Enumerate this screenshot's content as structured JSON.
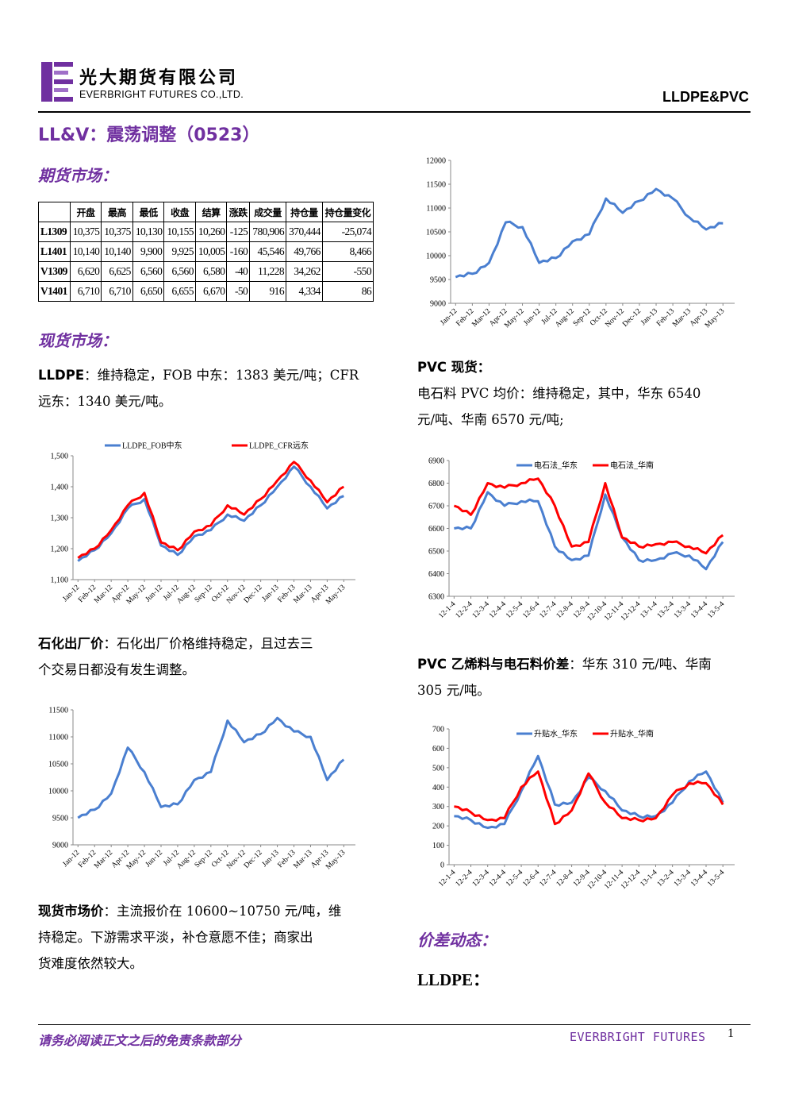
{
  "header": {
    "company_cn": "光大期货有限公司",
    "company_en": "EVERBRIGHT FUTURES CO.,LTD.",
    "doc_tag": "LLDPE&PVC",
    "brand_color": "#7030a0"
  },
  "title": "LL&V：震荡调整（0523）",
  "futures": {
    "heading": "期货市场：",
    "columns": [
      "",
      "开盘",
      "最高",
      "最低",
      "收盘",
      "结算",
      "涨跌",
      "成交量",
      "持仓量",
      "持仓量变化"
    ],
    "rows": [
      [
        "L1309",
        "10,375",
        "10,375",
        "10,130",
        "10,155",
        "10,260",
        "-125",
        "780,906",
        "370,444",
        "-25,074"
      ],
      [
        "L1401",
        "10,140",
        "10,140",
        "9,900",
        "9,925",
        "10,005",
        "-160",
        "45,546",
        "49,766",
        "8,466"
      ],
      [
        "V1309",
        "6,620",
        "6,625",
        "6,560",
        "6,560",
        "6,580",
        "-40",
        "11,228",
        "34,262",
        "-550"
      ],
      [
        "V1401",
        "6,710",
        "6,710",
        "6,650",
        "6,655",
        "6,670",
        "-50",
        "916",
        "4,334",
        "86"
      ]
    ]
  },
  "spot": {
    "heading": "现货市场：",
    "lldpe_label": "LLDPE",
    "lldpe_text_1": "：维持稳定，FOB 中东：1383 美元/吨；CFR",
    "lldpe_text_2": "远东：1340 美元/吨。",
    "petro_label": "石化出厂价",
    "petro_text_1": "：石化出厂价格维持稳定，且过去三",
    "petro_text_2": "个交易日都没有发生调整。",
    "market_label": "现货市场价",
    "market_text_1": "：主流报价在 10600~10750 元/吨，维",
    "market_text_2": "持稳定。下游需求平淡，补仓意愿不佳；商家出",
    "market_text_3": "货难度依然较大。",
    "pvc_label": "PVC 现货：",
    "pvc_text_1": "电石料 PVC 均价：维持稳定，其中，华东 6540",
    "pvc_text_2": "元/吨、华南 6570 元/吨;",
    "spread_label": "PVC 乙烯料与电石料价差",
    "spread_text_1": "：华东 310 元/吨、华南",
    "spread_text_2": "305 元/吨。",
    "spread_heading": "价差动态：",
    "lldpe_sub": "LLDPE："
  },
  "footer": {
    "disclaimer": "请务必阅读正文之后的免责条款部分",
    "brand": "EVERBRIGHT FUTURES",
    "page": "1"
  },
  "chart_data": [
    {
      "type": "line",
      "x_labels": [
        "Jan-12",
        "Feb-12",
        "Mar-12",
        "Apr-12",
        "May-12",
        "Jun-12",
        "Jul-12",
        "Aug-12",
        "Sep-12",
        "Oct-12",
        "Nov-12",
        "Dec-12",
        "Jan-13",
        "Feb-13",
        "Mar-13",
        "Apr-13",
        "May-13"
      ],
      "ylim": [
        9000,
        12000
      ],
      "yticks": [
        9000,
        9500,
        10000,
        10500,
        11000,
        11500,
        12000
      ],
      "series": [
        {
          "color": "#4a7fd0",
          "values": [
            9550,
            9620,
            9850,
            10700,
            10600,
            9850,
            9950,
            10300,
            10450,
            11200,
            10900,
            11150,
            11400,
            11200,
            10800,
            10550,
            10680
          ]
        }
      ]
    },
    {
      "type": "line",
      "x_labels": [
        "Jan-12",
        "Feb-12",
        "Mar-12",
        "Apr-12",
        "May-12",
        "Jun-12",
        "Jul-12",
        "Aug-12",
        "Sep-12",
        "Oct-12",
        "Nov-12",
        "Dec-12",
        "Jan-13",
        "Feb-13",
        "Mar-13",
        "Apr-13",
        "May-13"
      ],
      "ylim": [
        1100,
        1500
      ],
      "yticks": [
        "1,100",
        "1,200",
        "1,300",
        "1,400",
        "1,500"
      ],
      "series": [
        {
          "name": "LLDPE_FOB中东",
          "color": "#4a7fd0",
          "values": [
            1160,
            1195,
            1250,
            1330,
            1360,
            1210,
            1180,
            1240,
            1260,
            1310,
            1290,
            1340,
            1400,
            1465,
            1400,
            1330,
            1370
          ]
        },
        {
          "name": "LLDPE_CFR远东",
          "color": "#ff0000",
          "values": [
            1170,
            1200,
            1260,
            1340,
            1380,
            1220,
            1195,
            1255,
            1275,
            1340,
            1310,
            1360,
            1420,
            1480,
            1420,
            1350,
            1400
          ]
        }
      ]
    },
    {
      "type": "line",
      "x_labels": [
        "Jan-12",
        "Feb-12",
        "Mar-12",
        "Apr-12",
        "May-12",
        "Jun-12",
        "Jul-12",
        "Aug-12",
        "Sep-12",
        "Oct-12",
        "Nov-12",
        "Dec-12",
        "Jan-13",
        "Feb-13",
        "Mar-13",
        "Apr-13",
        "May-13"
      ],
      "ylim": [
        9000,
        11500
      ],
      "yticks": [
        9000,
        9500,
        10000,
        10500,
        11000,
        11500
      ],
      "series": [
        {
          "color": "#4a7fd0",
          "values": [
            9500,
            9650,
            9950,
            10800,
            10350,
            9700,
            9750,
            10200,
            10350,
            11300,
            10900,
            11050,
            11350,
            11100,
            11000,
            10200,
            10580
          ]
        }
      ]
    },
    {
      "type": "line",
      "x_labels": [
        "12-1-4",
        "12-2-4",
        "12-3-4",
        "12-4-4",
        "12-5-4",
        "12-6-4",
        "12-7-4",
        "12-8-4",
        "12-9-4",
        "12-10-4",
        "12-11-4",
        "12-12-4",
        "13-1-4",
        "13-2-4",
        "13-3-4",
        "13-4-4",
        "13-5-4"
      ],
      "ylim": [
        6300,
        6900
      ],
      "yticks": [
        6300,
        6400,
        6500,
        6600,
        6700,
        6800,
        6900
      ],
      "series": [
        {
          "name": "电石法_华东",
          "color": "#4a7fd0",
          "values": [
            6600,
            6600,
            6760,
            6700,
            6720,
            6720,
            6520,
            6460,
            6480,
            6750,
            6560,
            6460,
            6460,
            6490,
            6480,
            6420,
            6540
          ]
        },
        {
          "name": "电石法_华南",
          "color": "#ff0000",
          "values": [
            6700,
            6660,
            6800,
            6780,
            6800,
            6820,
            6700,
            6520,
            6540,
            6800,
            6560,
            6520,
            6530,
            6540,
            6520,
            6490,
            6570
          ]
        }
      ]
    },
    {
      "type": "line",
      "x_labels": [
        "12-1-4",
        "12-2-4",
        "12-3-4",
        "12-4-4",
        "12-5-4",
        "12-6-4",
        "12-7-4",
        "12-8-4",
        "12-9-4",
        "12-10-4",
        "12-11-4",
        "12-12-4",
        "13-1-4",
        "13-2-4",
        "13-3-4",
        "13-4-4",
        "13-5-4"
      ],
      "ylim": [
        0,
        700
      ],
      "yticks": [
        0,
        100,
        200,
        300,
        400,
        500,
        600,
        700
      ],
      "series": [
        {
          "name": "升贴水_华东",
          "color": "#4a7fd0",
          "values": [
            250,
            230,
            190,
            210,
            380,
            560,
            310,
            320,
            450,
            380,
            280,
            250,
            250,
            320,
            430,
            480,
            320
          ]
        },
        {
          "name": "升贴水_华南",
          "color": "#ff0000",
          "values": [
            300,
            270,
            230,
            240,
            400,
            480,
            210,
            280,
            470,
            320,
            240,
            230,
            240,
            360,
            420,
            420,
            310
          ]
        }
      ]
    }
  ]
}
